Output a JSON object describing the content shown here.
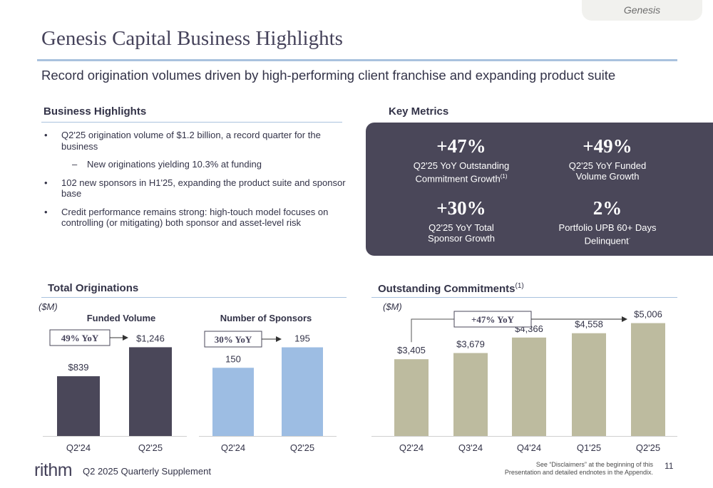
{
  "tab_label": "Genesis",
  "title": "Genesis Capital Business Highlights",
  "subtitle": "Record origination volumes driven by high-performing client franchise and expanding product suite",
  "business_highlights": {
    "heading": "Business Highlights",
    "bullets": [
      {
        "mark": "•",
        "text": "Q2'25 origination volume of $1.2 billion, a record quarter for the business"
      },
      {
        "mark": "–",
        "text": "New originations yielding 10.3% at funding"
      },
      {
        "mark": "•",
        "text": "102 new sponsors in H1'25, expanding the product suite and sponsor base"
      },
      {
        "mark": "•",
        "text": "Credit performance remains strong: high-touch model focuses on controlling (or mitigating) both sponsor and asset-level risk"
      }
    ]
  },
  "key_metrics": {
    "heading": "Key Metrics",
    "items": [
      {
        "value": "+47%",
        "label_line1": "Q2'25 YoY Outstanding",
        "label_line2": "Commitment Growth",
        "footnote": "(1)"
      },
      {
        "value": "+49%",
        "label_line1": "Q2'25 YoY Funded",
        "label_line2": "Volume Growth",
        "footnote": ""
      },
      {
        "value": "+30%",
        "label_line1": "Q2'25 YoY Total",
        "label_line2": "Sponsor Growth",
        "footnote": ""
      },
      {
        "value": "2%",
        "label_line1": "Portfolio UPB 60+ Days",
        "label_line2": "Delinquent",
        "footnote": "·"
      }
    ]
  },
  "total_originations": {
    "heading": "Total Originations",
    "unit": "($M)"
  },
  "outstanding_commitments": {
    "heading": "Outstanding Commitments",
    "footnote": "(1)",
    "unit": "($M)"
  },
  "colors": {
    "dark": "#4a4759",
    "light_blue": "#9dbde3",
    "khaki": "#bdbb9f",
    "rule": "#a9c2de",
    "title": "#45425a"
  },
  "chart_data": [
    {
      "type": "bar",
      "title": "Funded Volume",
      "categories": [
        "Q2'24",
        "Q2'25"
      ],
      "values": [
        839,
        1246
      ],
      "labels": [
        "$839",
        "$1,246"
      ],
      "annotation": "49% YoY",
      "ylim": [
        0,
        1500
      ]
    },
    {
      "type": "bar",
      "title": "Number of Sponsors",
      "categories": [
        "Q2'24",
        "Q2'25"
      ],
      "values": [
        150,
        195
      ],
      "labels": [
        "150",
        "195"
      ],
      "annotation": "30% YoY",
      "ylim": [
        0,
        235
      ]
    },
    {
      "type": "bar",
      "title": "",
      "categories": [
        "Q2'24",
        "Q3'24",
        "Q4'24",
        "Q1'25",
        "Q2'25"
      ],
      "values": [
        3405,
        3679,
        4366,
        4558,
        5006
      ],
      "labels": [
        "$3,405",
        "$3,679",
        "$4,366",
        "$4,558",
        "$5,006"
      ],
      "annotation": "+47% YoY",
      "ylim": [
        0,
        5750
      ]
    }
  ],
  "footer": {
    "logo": "rithm",
    "text": "Q2 2025 Quarterly Supplement",
    "note_line1": "See “Disclaimers” at the beginning of this",
    "note_line2": "Presentation and detailed endnotes in the Appendix.",
    "page": "11"
  }
}
